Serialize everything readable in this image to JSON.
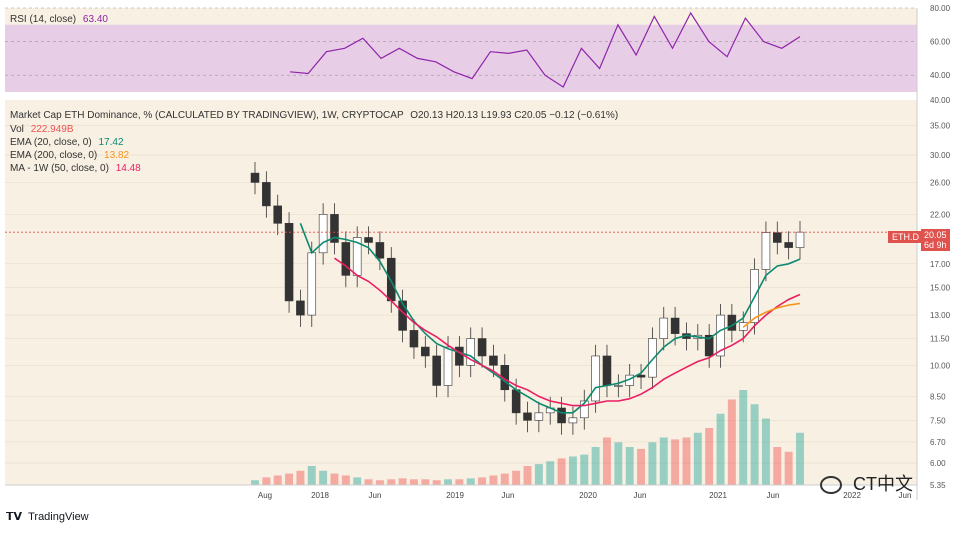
{
  "rsi_header": {
    "label": "RSI (14, close)",
    "value": "63.40"
  },
  "header": {
    "title": "Market Cap ETH Dominance, % (CALCULATED BY TRADINGVIEW), 1W, CRYPTOCAP",
    "ohlc": "O20.13 H20.13 L19.93 C20.05 −0.12 (−0.61%)",
    "vol_label": "Vol",
    "vol_value": "222.949B",
    "ema20_label": "EMA (20, close, 0)",
    "ema20_value": "17.42",
    "ema200_label": "EMA (200, close, 0)",
    "ema200_value": "13.82",
    "ma_label": "MA - 1W (50, close, 0)",
    "ma_value": "14.48"
  },
  "tags": {
    "symbol": "ETH.D",
    "price": "20.05",
    "countdown": "6d 9h"
  },
  "footer": {
    "brand": "TradingView",
    "watermark": "CT中文"
  },
  "colors": {
    "rsi_line": "#8e24aa",
    "rsi_band": "#e1bee7",
    "ema20": "#0b8a70",
    "ema200": "#f7931a",
    "ma50": "#e91e63",
    "up": "#26a69a",
    "down": "#ef5350",
    "bg": "#f8f0e3"
  },
  "chart_data": [
    {
      "type": "line",
      "name": "RSI",
      "ylim": [
        30,
        80
      ],
      "yticks": [
        "80.00",
        "60.00",
        "40.00"
      ],
      "band": [
        30,
        70
      ],
      "x": [
        "2017-08",
        "2017-10",
        "2017-12",
        "2018-01",
        "2018-02",
        "2018-03",
        "2018-05",
        "2018-07",
        "2018-09",
        "2018-11",
        "2019-01",
        "2019-03",
        "2019-05",
        "2019-07",
        "2019-09",
        "2019-11",
        "2020-01",
        "2020-03",
        "2020-05",
        "2020-07",
        "2020-09",
        "2020-11",
        "2021-01",
        "2021-02",
        "2021-04",
        "2021-05",
        "2021-06",
        "2021-07",
        "2021-08"
      ],
      "values": [
        42,
        41,
        54,
        56,
        62,
        50,
        56,
        50,
        48,
        42,
        38,
        54,
        53,
        55,
        40,
        33,
        56,
        44,
        70,
        52,
        75,
        56,
        77,
        60,
        51,
        74,
        60,
        56,
        63
      ]
    },
    {
      "type": "candlestick",
      "name": "ETH.D",
      "ylim": [
        5.35,
        40
      ],
      "log_scale": true,
      "yticks": [
        "40.00",
        "35.00",
        "30.00",
        "26.00",
        "22.00",
        "17.00",
        "15.00",
        "13.00",
        "11.50",
        "10.00",
        "8.50",
        "7.50",
        "6.70",
        "6.00",
        "5.35"
      ],
      "x_ticks": [
        "Aug",
        "2018",
        "Jun",
        "2019",
        "Jun",
        "2020",
        "Jun",
        "2021",
        "Jun",
        "2022",
        "Jun"
      ],
      "x": [
        "2017-08",
        "2017-09",
        "2017-10",
        "2017-11",
        "2017-12",
        "2018-01",
        "2018-02",
        "2018-03",
        "2018-04",
        "2018-05",
        "2018-06",
        "2018-07",
        "2018-08",
        "2018-09",
        "2018-10",
        "2018-11",
        "2018-12",
        "2019-01",
        "2019-02",
        "2019-03",
        "2019-04",
        "2019-05",
        "2019-06",
        "2019-07",
        "2019-08",
        "2019-09",
        "2019-10",
        "2019-11",
        "2019-12",
        "2020-01",
        "2020-02",
        "2020-03",
        "2020-04",
        "2020-05",
        "2020-06",
        "2020-07",
        "2020-08",
        "2020-09",
        "2020-10",
        "2020-11",
        "2020-12",
        "2021-01",
        "2021-02",
        "2021-03",
        "2021-04",
        "2021-05",
        "2021-06",
        "2021-07",
        "2021-08"
      ],
      "close": [
        26.0,
        23.0,
        21.0,
        14.0,
        13.0,
        18.0,
        22.0,
        19.0,
        16.0,
        19.5,
        19.0,
        17.5,
        14.0,
        12.0,
        11.0,
        10.5,
        9.0,
        11.0,
        10.0,
        11.5,
        10.5,
        10.0,
        8.8,
        7.8,
        7.5,
        7.8,
        8.0,
        7.4,
        7.6,
        8.3,
        10.5,
        9.0,
        9.0,
        9.5,
        9.4,
        11.5,
        12.8,
        11.8,
        11.5,
        11.7,
        10.5,
        13.0,
        12.0,
        12.5,
        16.5,
        20.0,
        19.0,
        18.5,
        20.05
      ],
      "ema20": [
        null,
        null,
        null,
        null,
        21.0,
        18.0,
        19.0,
        19.5,
        19.3,
        19.0,
        18.5,
        17.2,
        15.5,
        13.8,
        12.6,
        11.8,
        11.2,
        10.9,
        10.7,
        10.5,
        10.0,
        9.6,
        9.2,
        8.8,
        8.5,
        8.2,
        8.0,
        7.8,
        7.8,
        8.2,
        8.9,
        9.0,
        9.1,
        9.3,
        9.6,
        10.3,
        11.0,
        11.5,
        11.7,
        11.6,
        11.5,
        12.0,
        12.3,
        12.8,
        14.3,
        16.0,
        16.8,
        17.0,
        17.42
      ],
      "ema200": [
        null,
        null,
        null,
        null,
        null,
        null,
        null,
        null,
        null,
        null,
        null,
        null,
        null,
        null,
        null,
        null,
        null,
        null,
        null,
        null,
        null,
        null,
        null,
        null,
        null,
        null,
        null,
        null,
        null,
        null,
        null,
        null,
        null,
        null,
        null,
        null,
        null,
        null,
        null,
        null,
        null,
        null,
        null,
        12.2,
        12.8,
        13.2,
        13.5,
        13.7,
        13.82
      ],
      "ma50": [
        null,
        null,
        null,
        null,
        null,
        null,
        null,
        17.5,
        16.8,
        16.0,
        15.5,
        14.8,
        14.0,
        13.2,
        12.5,
        12.0,
        11.6,
        11.1,
        10.7,
        10.3,
        10.0,
        9.7,
        9.3,
        9.0,
        8.8,
        8.5,
        8.3,
        8.2,
        8.1,
        8.1,
        8.2,
        8.3,
        8.3,
        8.4,
        8.6,
        8.9,
        9.3,
        9.6,
        9.9,
        10.2,
        10.4,
        10.8,
        11.1,
        11.5,
        12.3,
        13.0,
        13.6,
        14.1,
        14.48
      ],
      "volume_rel": [
        0.05,
        0.08,
        0.1,
        0.12,
        0.15,
        0.2,
        0.15,
        0.12,
        0.1,
        0.08,
        0.06,
        0.05,
        0.06,
        0.07,
        0.06,
        0.06,
        0.05,
        0.06,
        0.06,
        0.07,
        0.08,
        0.1,
        0.12,
        0.15,
        0.2,
        0.22,
        0.25,
        0.28,
        0.3,
        0.32,
        0.4,
        0.5,
        0.45,
        0.4,
        0.38,
        0.45,
        0.5,
        0.48,
        0.5,
        0.55,
        0.6,
        0.75,
        0.9,
        1.0,
        0.85,
        0.7,
        0.4,
        0.35,
        0.55
      ]
    }
  ]
}
